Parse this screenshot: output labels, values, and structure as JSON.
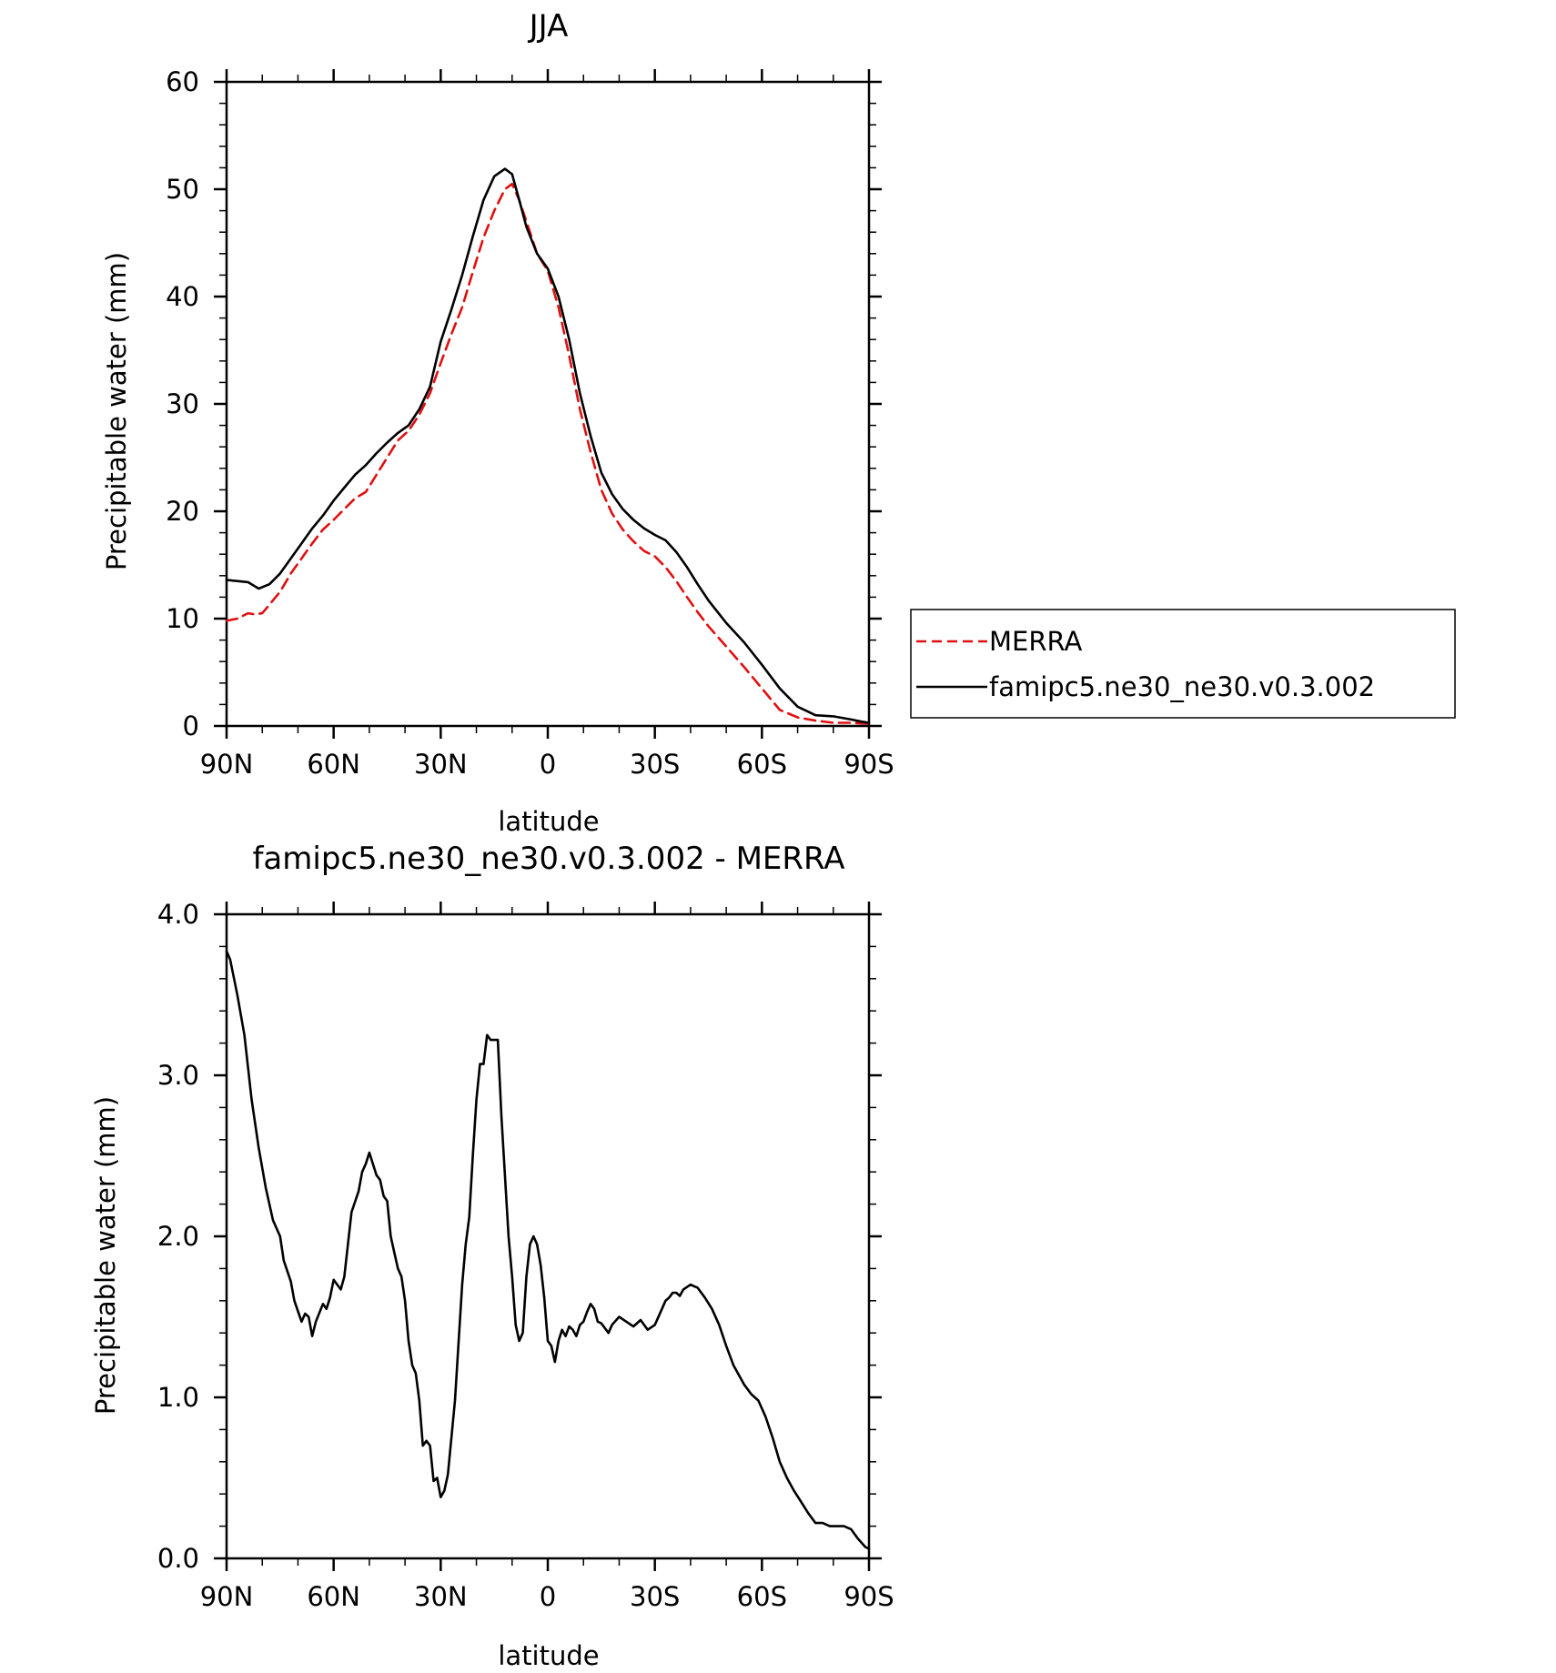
{
  "chart_data": [
    {
      "type": "line",
      "title": "JJA",
      "xlabel": "latitude",
      "ylabel": "Precipitable water (mm)",
      "xlim": [
        90,
        -90
      ],
      "ylim": [
        0,
        60
      ],
      "x_ticks": [
        90,
        60,
        30,
        0,
        -30,
        -60,
        -90
      ],
      "x_tick_labels": [
        "90N",
        "60N",
        "30N",
        "0",
        "30S",
        "60S",
        "90S"
      ],
      "y_ticks": [
        0,
        10,
        20,
        30,
        40,
        50,
        60
      ],
      "y_tick_labels": [
        "0",
        "10",
        "20",
        "30",
        "40",
        "50",
        "60"
      ],
      "grid": false,
      "legend": {
        "placement": "right, outside plot",
        "entries": [
          "MERRA",
          "famipc5.ne30_ne30.v0.3.002"
        ]
      },
      "series": [
        {
          "name": "MERRA",
          "color": "#e01010",
          "dash": "dashed",
          "x": [
            90,
            87,
            84,
            82,
            80,
            78,
            75,
            72,
            69,
            66,
            63,
            60,
            57,
            54,
            51,
            48,
            45,
            42,
            39,
            36,
            33,
            30,
            27,
            24,
            21,
            18,
            15,
            12,
            10,
            8,
            6,
            3,
            0,
            -3,
            -6,
            -9,
            -12,
            -15,
            -18,
            -21,
            -24,
            -27,
            -30,
            -33,
            -36,
            -39,
            -42,
            -45,
            -50,
            -55,
            -60,
            -65,
            -70,
            -75,
            -80,
            -85,
            -90
          ],
          "y": [
            9.8,
            10.0,
            10.5,
            10.4,
            10.5,
            11.3,
            12.5,
            14.2,
            15.6,
            17.0,
            18.3,
            19.2,
            20.2,
            21.2,
            21.8,
            23.4,
            25.0,
            26.6,
            27.5,
            29.0,
            31.0,
            33.8,
            36.5,
            39.0,
            42.3,
            45.5,
            48.0,
            50.0,
            50.5,
            49.0,
            47.0,
            44.0,
            42.4,
            39.0,
            34.5,
            29.5,
            25.5,
            22.0,
            19.8,
            18.3,
            17.2,
            16.3,
            15.8,
            14.8,
            13.5,
            12.0,
            10.6,
            9.3,
            7.4,
            5.5,
            3.5,
            1.5,
            0.8,
            0.5,
            0.3,
            0.3,
            0.2
          ]
        },
        {
          "name": "famipc5.ne30_ne30.v0.3.002",
          "color": "#000000",
          "dash": "solid",
          "x": [
            90,
            87,
            84,
            81,
            78,
            75,
            72,
            69,
            66,
            63,
            60,
            57,
            54,
            51,
            48,
            45,
            42,
            39,
            36,
            33,
            30,
            27,
            24,
            21,
            18,
            15,
            12,
            10,
            8,
            6,
            3,
            0,
            -3,
            -6,
            -9,
            -12,
            -15,
            -18,
            -21,
            -24,
            -27,
            -30,
            -33,
            -36,
            -39,
            -42,
            -45,
            -50,
            -55,
            -60,
            -65,
            -70,
            -75,
            -80,
            -85,
            -88,
            -90
          ],
          "y": [
            13.6,
            13.5,
            13.4,
            12.8,
            13.2,
            14.2,
            15.6,
            17.0,
            18.4,
            19.6,
            21.0,
            22.2,
            23.4,
            24.3,
            25.4,
            26.4,
            27.3,
            28.0,
            29.5,
            31.6,
            35.8,
            38.8,
            42.0,
            45.6,
            49.0,
            51.2,
            51.9,
            51.4,
            49.0,
            46.5,
            44.0,
            42.6,
            40.0,
            36.0,
            31.0,
            27.0,
            23.6,
            21.6,
            20.2,
            19.2,
            18.4,
            17.8,
            17.3,
            16.2,
            14.8,
            13.2,
            11.7,
            9.6,
            7.8,
            5.7,
            3.5,
            1.8,
            1.0,
            0.9,
            0.6,
            0.4,
            0.3
          ]
        }
      ]
    },
    {
      "type": "line",
      "title": "famipc5.ne30_ne30.v0.3.002 - MERRA",
      "xlabel": "latitude",
      "ylabel": "Precipitable water (mm)",
      "xlim": [
        90,
        -90
      ],
      "ylim": [
        0,
        4
      ],
      "x_ticks": [
        90,
        60,
        30,
        0,
        -30,
        -60,
        -90
      ],
      "x_tick_labels": [
        "90N",
        "60N",
        "30N",
        "0",
        "30S",
        "60S",
        "90S"
      ],
      "y_ticks": [
        0,
        1,
        2,
        3,
        4
      ],
      "y_tick_labels": [
        "0.0",
        "1.0",
        "2.0",
        "3.0",
        "4.0"
      ],
      "grid": false,
      "series": [
        {
          "color": "#000000",
          "dash": "solid",
          "x": [
            90,
            89,
            87,
            85,
            83,
            81,
            79,
            77,
            75,
            74,
            72,
            71,
            69,
            68,
            67,
            66,
            65,
            63,
            62,
            61,
            60,
            59,
            58,
            57,
            55,
            53,
            52,
            51,
            50,
            48,
            47,
            46,
            45,
            44,
            43,
            42,
            41,
            40,
            39,
            38,
            37,
            36,
            35,
            34,
            33,
            32,
            31,
            30,
            29,
            28,
            26,
            24,
            23,
            22,
            21,
            20,
            19,
            18,
            17,
            16,
            15,
            14,
            13,
            11,
            10,
            9,
            8,
            7,
            6,
            5,
            4,
            3,
            2,
            1,
            0,
            -1,
            -2,
            -3,
            -4,
            -5,
            -6,
            -7,
            -8,
            -9,
            -10,
            -11,
            -12,
            -13,
            -14,
            -15,
            -17,
            -18,
            -20,
            -22,
            -24,
            -26,
            -28,
            -30,
            -32,
            -33,
            -34,
            -35,
            -36,
            -37,
            -38,
            -40,
            -42,
            -44,
            -46,
            -48,
            -50,
            -52,
            -55,
            -57,
            -59,
            -61,
            -63,
            -65,
            -67,
            -69,
            -71,
            -73,
            -75,
            -77,
            -79,
            -81,
            -83,
            -85,
            -87,
            -89,
            -90
          ],
          "y": [
            3.77,
            3.72,
            3.5,
            3.25,
            2.85,
            2.55,
            2.3,
            2.1,
            2.0,
            1.85,
            1.72,
            1.6,
            1.47,
            1.52,
            1.5,
            1.38,
            1.47,
            1.58,
            1.55,
            1.62,
            1.73,
            1.7,
            1.67,
            1.75,
            2.15,
            2.28,
            2.4,
            2.45,
            2.52,
            2.38,
            2.35,
            2.25,
            2.22,
            2.0,
            1.9,
            1.8,
            1.75,
            1.6,
            1.35,
            1.2,
            1.15,
            0.98,
            0.7,
            0.73,
            0.7,
            0.48,
            0.5,
            0.38,
            0.42,
            0.52,
            0.98,
            1.7,
            1.95,
            2.12,
            2.5,
            2.85,
            3.07,
            3.07,
            3.25,
            3.22,
            3.22,
            3.22,
            2.75,
            2.0,
            1.75,
            1.45,
            1.35,
            1.4,
            1.75,
            1.95,
            2.0,
            1.95,
            1.82,
            1.62,
            1.35,
            1.32,
            1.22,
            1.35,
            1.42,
            1.38,
            1.44,
            1.42,
            1.38,
            1.45,
            1.47,
            1.53,
            1.58,
            1.55,
            1.47,
            1.46,
            1.4,
            1.45,
            1.5,
            1.47,
            1.44,
            1.48,
            1.42,
            1.45,
            1.55,
            1.6,
            1.62,
            1.65,
            1.65,
            1.63,
            1.67,
            1.7,
            1.68,
            1.62,
            1.55,
            1.45,
            1.32,
            1.2,
            1.08,
            1.02,
            0.98,
            0.88,
            0.75,
            0.6,
            0.5,
            0.42,
            0.35,
            0.28,
            0.22,
            0.22,
            0.2,
            0.2,
            0.2,
            0.18,
            0.12,
            0.07,
            0.06
          ]
        }
      ]
    }
  ]
}
